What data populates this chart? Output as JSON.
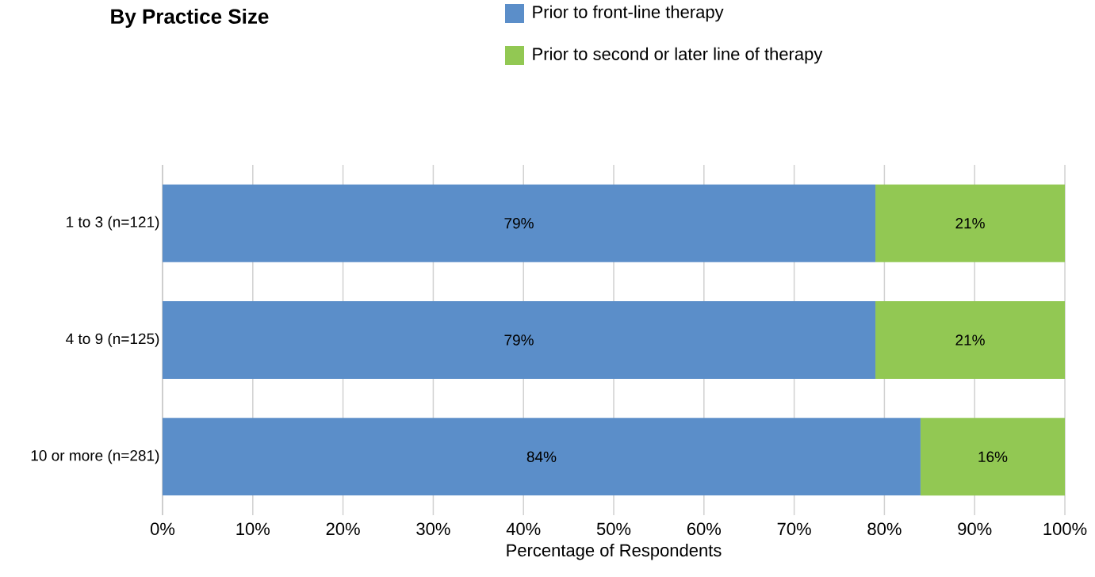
{
  "chart_data": {
    "type": "bar",
    "orientation": "horizontal",
    "stacked": true,
    "title": "By Practice Size",
    "xlabel": "Percentage of Respondents",
    "categories": [
      "1 to 3 (n=121)",
      "4 to 9 (n=125)",
      "10 or more (n=281)"
    ],
    "series": [
      {
        "name": "Prior to front-line therapy",
        "color": "#5b8ec9",
        "values": [
          79,
          79,
          84
        ],
        "value_labels": [
          "79%",
          "79%",
          "84%"
        ]
      },
      {
        "name": "Prior to second or later line of therapy",
        "color": "#92c853",
        "values": [
          21,
          21,
          16
        ],
        "value_labels": [
          "21%",
          "21%",
          "16%"
        ]
      }
    ],
    "xlim": [
      0,
      100
    ],
    "xticks": [
      {
        "value": 0,
        "label": "0%"
      },
      {
        "value": 10,
        "label": "10%"
      },
      {
        "value": 20,
        "label": "20%"
      },
      {
        "value": 30,
        "label": "30%"
      },
      {
        "value": 40,
        "label": "40%"
      },
      {
        "value": 50,
        "label": "50%"
      },
      {
        "value": 60,
        "label": "60%"
      },
      {
        "value": 70,
        "label": "70%"
      },
      {
        "value": 80,
        "label": "80%"
      },
      {
        "value": 90,
        "label": "90%"
      },
      {
        "value": 100,
        "label": "100%"
      }
    ],
    "grid": "x",
    "legend": "top"
  }
}
